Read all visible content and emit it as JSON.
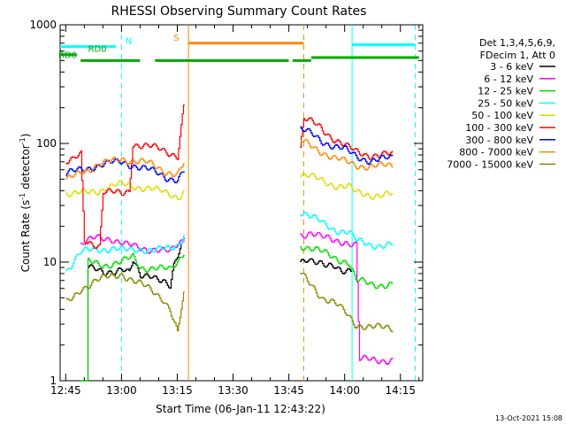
{
  "chart_data": {
    "type": "line",
    "title": "RHESSI Observing Summary Count Rates",
    "xlabel": "Start Time (06-Jan-11 12:43:22)",
    "ylabel_main": "Count Rate (s",
    "ylabel_sup1": "-1",
    "ylabel_mid": " detector",
    "ylabel_sup2": "-1",
    "ylabel_end": ")",
    "yscale": "log",
    "ylim": [
      1,
      1000
    ],
    "xlim_min": [
      -1.5,
      96
    ],
    "x_units": "minutes after 12:45",
    "x_ticks": [
      {
        "m": 0,
        "label": "12:45"
      },
      {
        "m": 15,
        "label": "13:00"
      },
      {
        "m": 30,
        "label": "13:15"
      },
      {
        "m": 45,
        "label": "13:30"
      },
      {
        "m": 60,
        "label": "13:45"
      },
      {
        "m": 75,
        "label": "14:00"
      },
      {
        "m": 90,
        "label": "14:15"
      }
    ],
    "y_ticks": [
      {
        "v": 1,
        "label": "1"
      },
      {
        "v": 10,
        "label": "10"
      },
      {
        "v": 100,
        "label": "100"
      },
      {
        "v": 1000,
        "label": "1000"
      }
    ],
    "legend": {
      "position": "right",
      "header1": "Det 1,3,4,5,6,9,",
      "header2": "FDecim 1, Att 0"
    },
    "series": [
      {
        "name": "3 - 6 keV",
        "color": "#000000",
        "segments": [
          [
            [
              4,
              -1
            ],
            [
              6,
              9
            ],
            [
              10,
              8
            ],
            [
              15,
              9
            ],
            [
              17,
              8
            ],
            [
              18,
              10
            ],
            [
              20,
              7.5
            ],
            [
              23,
              8
            ],
            [
              26,
              7
            ],
            [
              28,
              6
            ],
            [
              29,
              9
            ],
            [
              30,
              11
            ],
            [
              31,
              14
            ],
            [
              32,
              16
            ]
          ],
          [
            [
              63,
              10
            ],
            [
              65,
              11
            ],
            [
              68,
              10
            ],
            [
              70,
              9
            ],
            [
              72,
              9
            ],
            [
              74,
              8.5
            ],
            [
              77,
              9
            ]
          ]
        ]
      },
      {
        "name": "6 - 12 keV",
        "color": "#ff00ff",
        "segments": [
          [
            [
              4,
              14
            ],
            [
              8,
              16
            ],
            [
              12,
              16
            ],
            [
              16,
              14
            ],
            [
              20,
              13
            ],
            [
              24,
              13
            ],
            [
              28,
              12
            ],
            [
              30,
              14
            ],
            [
              32,
              16
            ]
          ],
          [
            [
              63,
              17
            ],
            [
              66,
              18
            ],
            [
              69,
              16
            ],
            [
              72,
              15
            ],
            [
              75,
              15
            ],
            [
              78,
              14
            ],
            [
              79,
              1.5
            ],
            [
              88,
              1.5
            ]
          ]
        ]
      },
      {
        "name": "12 - 25 keV",
        "color": "#00dd00",
        "segments": [
          [
            [
              4,
              -1
            ],
            [
              6,
              10
            ],
            [
              10,
              9.5
            ],
            [
              15,
              10
            ],
            [
              18,
              11
            ],
            [
              20,
              9
            ],
            [
              24,
              9
            ],
            [
              28,
              8.5
            ],
            [
              30,
              10
            ],
            [
              32,
              13
            ]
          ],
          [
            [
              63,
              14
            ],
            [
              66,
              13
            ],
            [
              69,
              12
            ],
            [
              72,
              11
            ],
            [
              76,
              10
            ],
            [
              78,
              7
            ],
            [
              82,
              6.5
            ],
            [
              88,
              6.5
            ]
          ]
        ]
      },
      {
        "name": "25 - 50 keV",
        "color": "#00ffff",
        "segments": [
          [
            [
              0,
              8.5
            ],
            [
              2,
              10
            ],
            [
              4,
              12
            ],
            [
              8,
              13
            ],
            [
              12,
              13
            ],
            [
              16,
              12.5
            ],
            [
              20,
              13
            ],
            [
              24,
              12.5
            ],
            [
              28,
              13
            ],
            [
              30,
              14
            ],
            [
              32,
              18
            ]
          ],
          [
            [
              63,
              27
            ],
            [
              66,
              24
            ],
            [
              69,
              21
            ],
            [
              72,
              19
            ],
            [
              76,
              18
            ],
            [
              78,
              15
            ],
            [
              82,
              14
            ],
            [
              88,
              14
            ]
          ]
        ]
      },
      {
        "name": "50 - 100 keV",
        "color": "#dddd00",
        "segments": [
          [
            [
              0,
              38
            ],
            [
              2,
              37
            ],
            [
              4,
              38
            ],
            [
              8,
              40
            ],
            [
              13,
              44
            ],
            [
              15,
              45
            ],
            [
              18,
              44
            ],
            [
              22,
              42
            ],
            [
              27,
              38
            ],
            [
              30,
              36
            ],
            [
              32,
              40
            ]
          ],
          [
            [
              63,
              55
            ],
            [
              66,
              52
            ],
            [
              69,
              48
            ],
            [
              72,
              45
            ],
            [
              76,
              43
            ],
            [
              78,
              38
            ],
            [
              82,
              37
            ],
            [
              88,
              37
            ]
          ]
        ]
      },
      {
        "name": "100 - 300 keV",
        "color": "#ff0000",
        "segments": [
          [
            [
              0,
              70
            ],
            [
              2,
              72
            ],
            [
              4,
              80
            ],
            [
              5,
              15
            ],
            [
              9,
              14
            ],
            [
              10,
              40
            ],
            [
              15,
              37
            ],
            [
              17,
              40
            ],
            [
              18,
              100
            ],
            [
              22,
              95
            ],
            [
              27,
              85
            ],
            [
              30,
              80
            ],
            [
              32,
              250
            ]
          ],
          [
            [
              63,
              90
            ],
            [
              64,
              160
            ],
            [
              68,
              140
            ],
            [
              72,
              110
            ],
            [
              75,
              95
            ],
            [
              78,
              85
            ],
            [
              82,
              80
            ],
            [
              88,
              80
            ]
          ]
        ]
      },
      {
        "name": "300 - 800 keV",
        "color": "#0000ff",
        "segments": [
          [
            [
              0,
              55
            ],
            [
              4,
              60
            ],
            [
              8,
              65
            ],
            [
              12,
              68
            ],
            [
              15,
              70
            ],
            [
              18,
              66
            ],
            [
              22,
              60
            ],
            [
              27,
              52
            ],
            [
              30,
              50
            ],
            [
              32,
              60
            ]
          ],
          [
            [
              63,
              130
            ],
            [
              66,
              120
            ],
            [
              69,
              105
            ],
            [
              72,
              95
            ],
            [
              75,
              88
            ],
            [
              78,
              78
            ],
            [
              82,
              72
            ],
            [
              88,
              75
            ]
          ]
        ]
      },
      {
        "name": "800 - 7000 keV",
        "color": "#ff8800",
        "segments": [
          [
            [
              0,
              48
            ],
            [
              4,
              58
            ],
            [
              8,
              65
            ],
            [
              12,
              70
            ],
            [
              15,
              75
            ],
            [
              18,
              72
            ],
            [
              22,
              68
            ],
            [
              27,
              58
            ],
            [
              30,
              55
            ],
            [
              32,
              70
            ]
          ],
          [
            [
              63,
              105
            ],
            [
              66,
              95
            ],
            [
              69,
              85
            ],
            [
              72,
              75
            ],
            [
              75,
              70
            ],
            [
              78,
              66
            ],
            [
              82,
              64
            ],
            [
              88,
              65
            ]
          ]
        ]
      },
      {
        "name": "7000 - 15000 keV",
        "color": "#888800",
        "segments": [
          [
            [
              0,
              4.5
            ],
            [
              2,
              5
            ],
            [
              4,
              6
            ],
            [
              8,
              7
            ],
            [
              12,
              7.5
            ],
            [
              15,
              8
            ],
            [
              18,
              7
            ],
            [
              22,
              6
            ],
            [
              26,
              5
            ],
            [
              28,
              4
            ],
            [
              30,
              2.5
            ],
            [
              31,
              4
            ],
            [
              32,
              6
            ]
          ],
          [
            [
              63,
              8
            ],
            [
              66,
              6.5
            ],
            [
              69,
              5
            ],
            [
              72,
              4.5
            ],
            [
              75,
              3.8
            ],
            [
              78,
              3
            ],
            [
              82,
              2.8
            ],
            [
              88,
              2.8
            ]
          ]
        ]
      }
    ],
    "markers": [
      {
        "label": "N",
        "color": "#00ffff",
        "segments": [
          [
            -1.5,
            13.5
          ]
        ],
        "y": 655,
        "label_m": 16
      },
      {
        "label": "RD0",
        "color": "#00aa00",
        "segments": [
          [
            -1.5,
            3
          ]
        ],
        "y": 560,
        "label_m": 6
      },
      {
        "label": "RD6",
        "color": "#00aa00",
        "segments": [
          [
            4,
            20
          ],
          [
            24,
            60
          ],
          [
            61,
            66
          ]
        ],
        "y": 500,
        "label_m": -2
      },
      {
        "label": "S",
        "color": "#ff8800",
        "segments": [
          [
            33,
            64
          ]
        ],
        "y": 700,
        "label_m": 29
      },
      {
        "label": "",
        "color": "#00aa00",
        "segments": [
          [
            66,
            95
          ]
        ],
        "y": 530,
        "label_m": 0
      },
      {
        "label": "",
        "color": "#00ffff",
        "segments": [
          [
            77,
            94
          ]
        ],
        "y": 680,
        "label_m": 0
      }
    ],
    "vlines": [
      {
        "m": 15,
        "color": "#00ffff",
        "dash": true
      },
      {
        "m": 33,
        "color": "#ff8800",
        "dash": false
      },
      {
        "m": 64,
        "color": "#ff8800",
        "dash": true
      },
      {
        "m": 77,
        "color": "#00ffff",
        "dash": false
      },
      {
        "m": 94,
        "color": "#00ffff",
        "dash": true
      }
    ],
    "grid": false
  },
  "footer_timestamp": "13-Oct-2021 15:08"
}
